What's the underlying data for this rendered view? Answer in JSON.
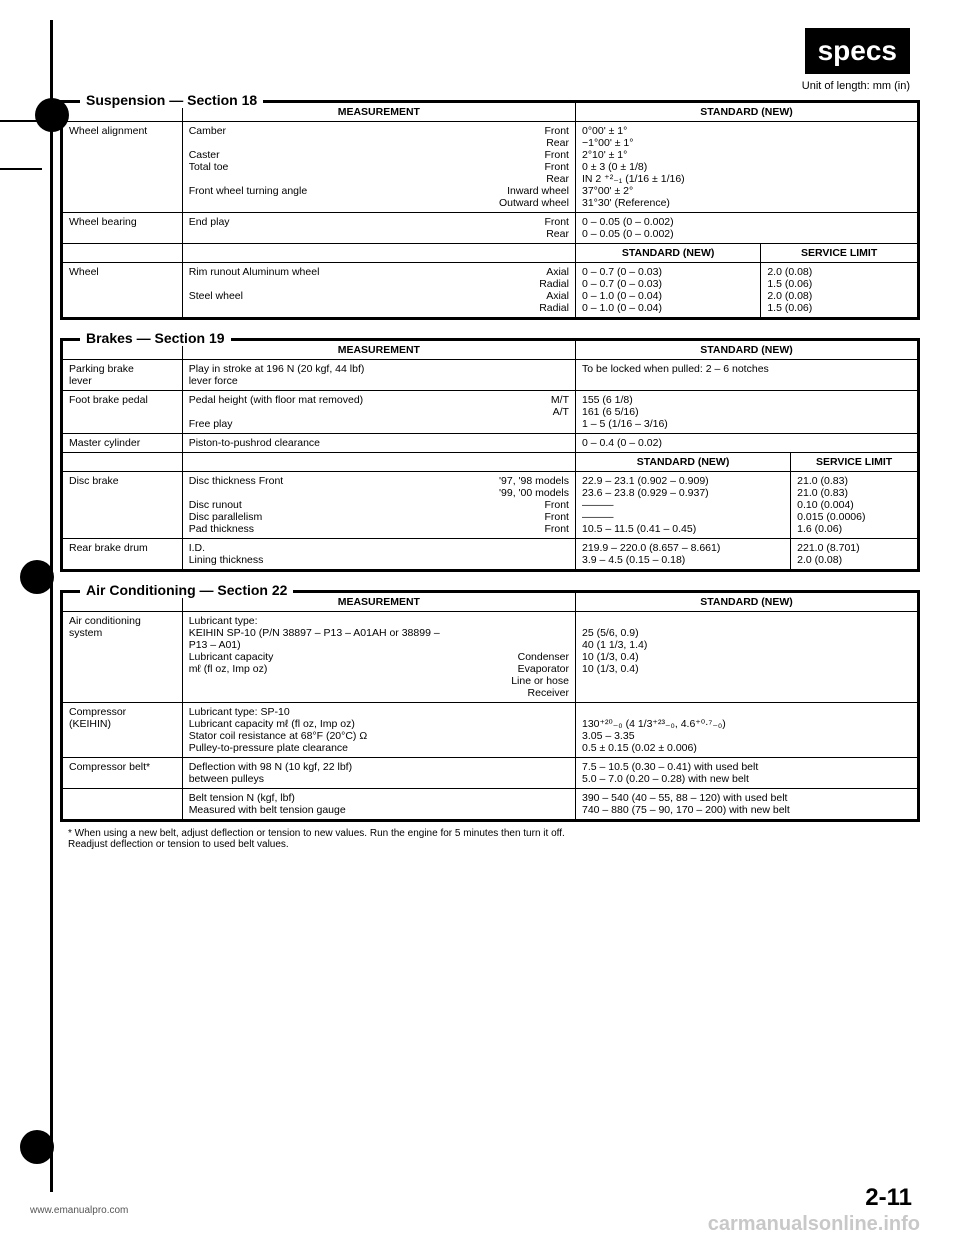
{
  "badge": "specs",
  "unit_label": "Unit of length: mm (in)",
  "page_num": "2-11",
  "footer_left": "www.emanualpro.com",
  "watermark": "carmanualsonline.info",
  "note": "* When using a new belt, adjust deflection or tension to new values. Run the engine for 5 minutes then turn it off.\nReadjust deflection or tension to used belt values.",
  "headers": {
    "measurement": "MEASUREMENT",
    "standard": "STANDARD (NEW)",
    "service_limit": "SERVICE LIMIT"
  },
  "suspension": {
    "title": "Suspension — Section 18",
    "rows": [
      {
        "item": "Wheel alignment",
        "meas": [
          [
            "Camber",
            "Front"
          ],
          [
            "",
            "Rear"
          ],
          [
            "Caster",
            "Front"
          ],
          [
            "Total toe",
            "Front"
          ],
          [
            "",
            "Rear"
          ],
          [
            "Front wheel turning angle",
            "Inward wheel"
          ],
          [
            "",
            "Outward wheel"
          ]
        ],
        "std": [
          "0°00' ± 1°",
          "−1°00' ± 1°",
          "2°10' ± 1°",
          "0 ± 3 (0 ± 1/8)",
          "IN 2 ⁺²₋₁ (1/16 ± 1/16)",
          "37°00' ± 2°",
          "31°30' (Reference)"
        ]
      },
      {
        "item": "Wheel bearing",
        "meas": [
          [
            "End play",
            "Front"
          ],
          [
            "",
            "Rear"
          ]
        ],
        "std": [
          "0 – 0.05 (0 – 0.002)",
          "0 – 0.05 (0 – 0.002)"
        ]
      }
    ],
    "wheel_row": {
      "item": "Wheel",
      "meas": [
        [
          "Rim runout    Aluminum wheel",
          "Axial"
        ],
        [
          "",
          "Radial"
        ],
        [
          "                  Steel wheel",
          "Axial"
        ],
        [
          "",
          "Radial"
        ]
      ],
      "std": [
        "0 – 0.7 (0 – 0.03)",
        "0 – 0.7 (0 – 0.03)",
        "0 – 1.0 (0 – 0.04)",
        "0 – 1.0 (0 – 0.04)"
      ],
      "lim": [
        "2.0 (0.08)",
        "1.5 (0.06)",
        "2.0 (0.08)",
        "1.5 (0.06)"
      ]
    }
  },
  "brakes": {
    "title": "Brakes — Section 19",
    "rows": [
      {
        "item": "Parking brake\nlever",
        "meas": [
          [
            "Play in stroke at 196 N (20 kgf, 44 lbf)\nlever force",
            ""
          ]
        ],
        "std": [
          "To be locked when pulled: 2 – 6 notches"
        ]
      },
      {
        "item": "Foot brake pedal",
        "meas": [
          [
            "Pedal height (with floor mat removed)",
            "M/T"
          ],
          [
            "",
            "A/T"
          ],
          [
            "Free play",
            ""
          ]
        ],
        "std": [
          "155 (6 1/8)",
          "161 (6 5/16)",
          "1 – 5 (1/16 – 3/16)"
        ]
      },
      {
        "item": "Master cylinder",
        "meas": [
          [
            "Piston-to-pushrod clearance",
            ""
          ]
        ],
        "std": [
          "0 – 0.4 (0 – 0.02)"
        ]
      }
    ],
    "disc_row": {
      "item": "Disc brake",
      "meas": [
        [
          "Disc thickness           Front",
          "'97, '98 models"
        ],
        [
          "",
          "'99, '00 models"
        ],
        [
          "Disc runout",
          "Front"
        ],
        [
          "Disc parallelism",
          "Front"
        ],
        [
          "Pad thickness",
          "Front"
        ]
      ],
      "std": [
        "22.9 – 23.1 (0.902 – 0.909)",
        "23.6 – 23.8 (0.929 – 0.937)",
        "———",
        "———",
        "10.5 – 11.5 (0.41 – 0.45)"
      ],
      "lim": [
        "21.0 (0.83)",
        "21.0 (0.83)",
        "0.10 (0.004)",
        "0.015 (0.0006)",
        "1.6 (0.06)"
      ]
    },
    "drum_row": {
      "item": "Rear brake drum",
      "meas": [
        [
          "I.D.",
          ""
        ],
        [
          "Lining thickness",
          ""
        ]
      ],
      "std": [
        "219.9 – 220.0 (8.657 – 8.661)",
        "3.9 – 4.5 (0.15 – 0.18)"
      ],
      "lim": [
        "221.0 (8.701)",
        "2.0 (0.08)"
      ]
    }
  },
  "ac": {
    "title": "Air Conditioning — Section 22",
    "rows": [
      {
        "item": "Air conditioning\nsystem",
        "meas": [
          [
            "Lubricant type:\nKEIHIN SP-10 (P/N 38897 – P13 – A01AH or 38899 –\nP13 – A01)",
            ""
          ],
          [
            "Lubricant capacity",
            "Condenser"
          ],
          [
            "mℓ (fl oz, Imp oz)",
            "Evaporator"
          ],
          [
            "",
            "Line or hose"
          ],
          [
            "",
            "Receiver"
          ]
        ],
        "std": [
          "",
          "25 (5/6, 0.9)",
          "40 (1 1/3, 1.4)",
          "10 (1/3, 0.4)",
          "10 (1/3, 0.4)"
        ]
      },
      {
        "item": "Compressor\n(KEIHIN)",
        "meas": [
          [
            "Lubricant type: SP-10",
            ""
          ],
          [
            "Lubricant capacity   mℓ (fl oz, Imp oz)",
            ""
          ],
          [
            "Stator coil resistance at 68°F (20°C) Ω",
            ""
          ],
          [
            "Pulley-to-pressure plate clearance",
            ""
          ]
        ],
        "std": [
          "",
          "130⁺²⁰₋₀ (4 1/3⁺²³₋₀, 4.6⁺⁰·⁷₋₀)",
          "3.05 – 3.35",
          "0.5 ± 0.15 (0.02 ± 0.006)"
        ]
      },
      {
        "item": "Compressor belt*",
        "meas": [
          [
            "Deflection with 98 N (10 kgf, 22 lbf)\nbetween pulleys",
            ""
          ]
        ],
        "std": [
          "7.5 – 10.5 (0.30 – 0.41) with used belt\n5.0 – 7.0 (0.20 – 0.28) with new belt"
        ]
      },
      {
        "item": "",
        "meas": [
          [
            "Belt tension   N (kgf, lbf)\nMeasured with belt tension gauge",
            ""
          ]
        ],
        "std": [
          "390 – 540 (40 – 55, 88 – 120) with used belt\n740 – 880 (75 – 90, 170 – 200) with new belt"
        ]
      }
    ]
  }
}
